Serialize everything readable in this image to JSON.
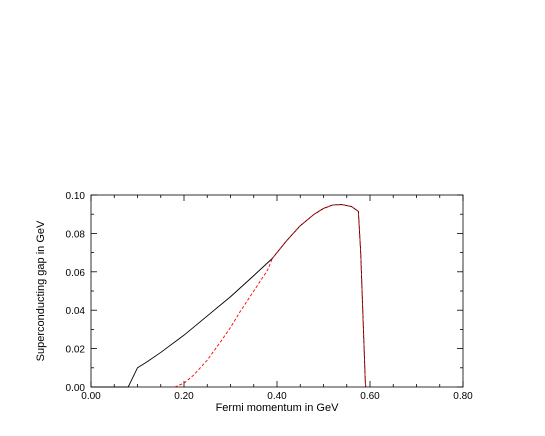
{
  "chart_data": {
    "type": "line",
    "title": "",
    "xlabel": "Fermi momentum in GeV",
    "ylabel": "Superconducting gap in GeV",
    "xlim": [
      0.0,
      0.8
    ],
    "ylim": [
      0.0,
      0.1
    ],
    "x_ticks": [
      "0.00",
      "0.20",
      "0.40",
      "0.60",
      "0.80"
    ],
    "y_ticks": [
      "0.00",
      "0.02",
      "0.04",
      "0.06",
      "0.08",
      "0.10"
    ],
    "grid": false,
    "legend": "none",
    "series": [
      {
        "color": "#000000",
        "dash": "solid",
        "x": [
          0.0,
          0.08,
          0.1,
          0.12,
          0.15,
          0.2,
          0.25,
          0.3,
          0.35,
          0.39,
          0.42,
          0.45,
          0.48,
          0.5,
          0.52,
          0.54,
          0.56,
          0.575,
          0.58,
          0.59,
          0.591
        ],
        "y": [
          0.0,
          0.0,
          0.01,
          0.013,
          0.018,
          0.027,
          0.037,
          0.047,
          0.058,
          0.067,
          0.076,
          0.084,
          0.09,
          0.093,
          0.0948,
          0.095,
          0.094,
          0.0915,
          0.07,
          0.002,
          0.0
        ]
      },
      {
        "color": "#ff0000",
        "dash": "dashed",
        "x": [
          0.18,
          0.2,
          0.22,
          0.25,
          0.28,
          0.3,
          0.32,
          0.35,
          0.38,
          0.39,
          0.42,
          0.45,
          0.48,
          0.5,
          0.52,
          0.54,
          0.56,
          0.575,
          0.58,
          0.59,
          0.591
        ],
        "y": [
          0.0,
          0.002,
          0.006,
          0.014,
          0.024,
          0.031,
          0.039,
          0.05,
          0.061,
          0.067,
          0.076,
          0.084,
          0.09,
          0.093,
          0.0948,
          0.095,
          0.094,
          0.0915,
          0.07,
          0.002,
          0.0
        ]
      }
    ]
  }
}
